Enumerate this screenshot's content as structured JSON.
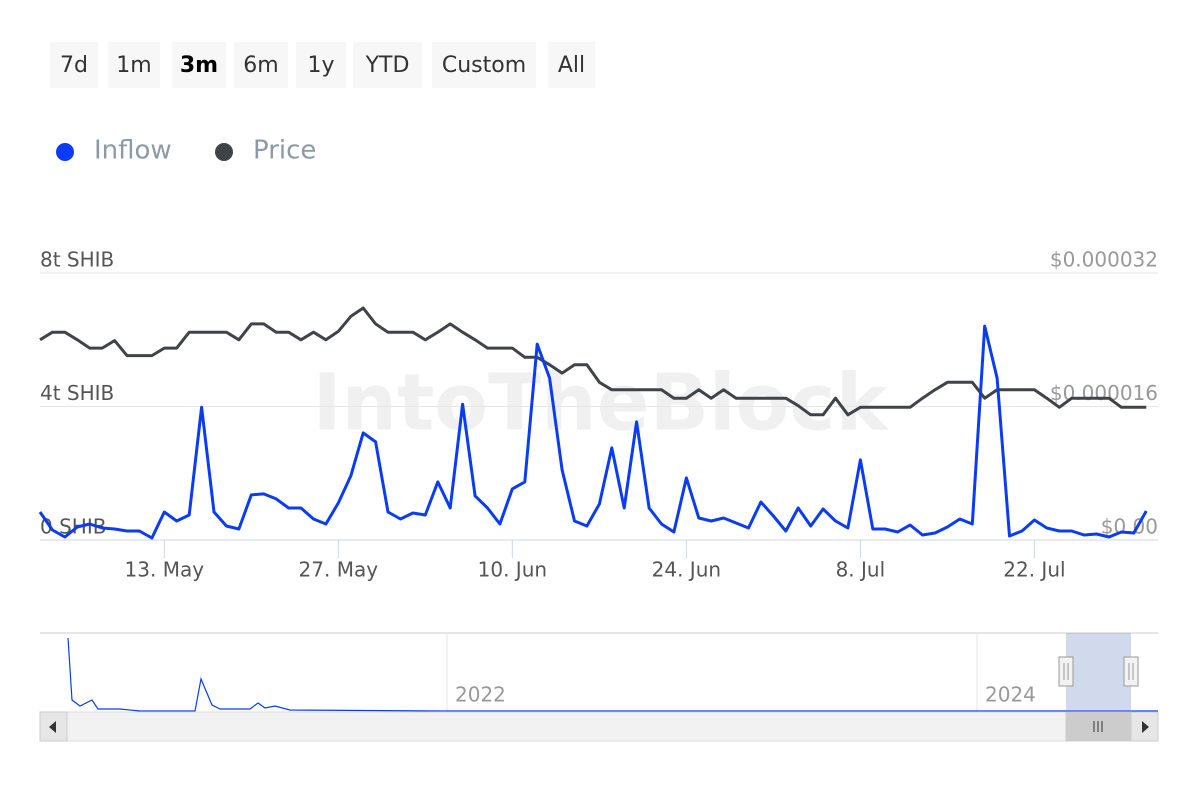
{
  "range_buttons": {
    "labels": [
      "7d",
      "1m",
      "3m",
      "6m",
      "1y",
      "YTD",
      "Custom",
      "All"
    ],
    "selected": 2
  },
  "chart_data": {
    "type": "line",
    "watermark": "IntoTheBlock",
    "categories": [
      null,
      null,
      null,
      null,
      null,
      null,
      null,
      null,
      null,
      null,
      "13. May",
      null,
      null,
      null,
      null,
      null,
      null,
      null,
      null,
      null,
      null,
      null,
      null,
      null,
      "27. May",
      null,
      null,
      null,
      null,
      null,
      null,
      null,
      null,
      null,
      null,
      null,
      null,
      null,
      "10. Jun",
      null,
      null,
      null,
      null,
      null,
      null,
      null,
      null,
      null,
      null,
      null,
      null,
      null,
      "24. Jun",
      null,
      null,
      null,
      null,
      null,
      null,
      null,
      null,
      null,
      null,
      null,
      null,
      null,
      "8. Jul",
      null,
      null,
      null,
      null,
      null,
      null,
      null,
      null,
      null,
      null,
      null,
      null,
      null,
      "22. Jul",
      null,
      null,
      null,
      null,
      null,
      null,
      null,
      null,
      null
    ],
    "ylim": [
      0,
      8
    ],
    "yticks": [
      {
        "value": 0,
        "label": "0 SHIB"
      },
      {
        "value": 4,
        "label": "4t SHIB"
      },
      {
        "value": 8,
        "label": "8t SHIB"
      }
    ],
    "y2lim": [
      0,
      3.2e-05
    ],
    "y2ticks": [
      {
        "value": 0,
        "label": "$0.00"
      },
      {
        "value": 1.6e-05,
        "label": "$0.000016"
      },
      {
        "value": 3.2e-05,
        "label": "$0.000032"
      }
    ],
    "grid": true,
    "series": [
      {
        "name": "Inflow",
        "color": "#0a3cf5",
        "values": [
          0.84,
          0.3,
          0.09,
          0.39,
          0.48,
          0.36,
          0.33,
          0.27,
          0.27,
          0.06,
          0.84,
          0.57,
          0.75,
          3.98,
          0.84,
          0.42,
          0.33,
          1.35,
          1.38,
          1.23,
          0.96,
          0.96,
          0.63,
          0.48,
          1.11,
          1.92,
          3.21,
          2.94,
          0.84,
          0.63,
          0.81,
          0.75,
          1.74,
          0.96,
          4.07,
          1.32,
          0.96,
          0.48,
          1.53,
          1.74,
          5.87,
          4.85,
          2.1,
          0.57,
          0.42,
          1.08,
          2.76,
          0.96,
          3.54,
          0.96,
          0.48,
          0.24,
          1.86,
          0.66,
          0.57,
          0.66,
          0.51,
          0.36,
          1.14,
          0.72,
          0.27,
          0.96,
          0.42,
          0.93,
          0.57,
          0.36,
          2.4,
          0.33,
          0.33,
          0.24,
          0.45,
          0.15,
          0.21,
          0.39,
          0.63,
          0.48,
          6.41,
          4.85,
          0.12,
          0.27,
          0.6,
          0.36,
          0.27,
          0.27,
          0.15,
          0.18,
          0.09,
          0.24,
          0.21,
          0.87
        ]
      },
      {
        "name": "Price",
        "color": "#404448",
        "axis": "y2",
        "values": [
          2.4e-05,
          2.49e-05,
          2.49e-05,
          2.4e-05,
          2.3e-05,
          2.3e-05,
          2.39e-05,
          2.21e-05,
          2.21e-05,
          2.21e-05,
          2.3e-05,
          2.3e-05,
          2.49e-05,
          2.49e-05,
          2.49e-05,
          2.49e-05,
          2.4e-05,
          2.59e-05,
          2.59e-05,
          2.49e-05,
          2.49e-05,
          2.4e-05,
          2.49e-05,
          2.4e-05,
          2.5e-05,
          2.68e-05,
          2.78e-05,
          2.59e-05,
          2.49e-05,
          2.49e-05,
          2.49e-05,
          2.4e-05,
          2.49e-05,
          2.59e-05,
          2.49e-05,
          2.4e-05,
          2.3e-05,
          2.3e-05,
          2.3e-05,
          2.19e-05,
          2.19e-05,
          2.1e-05,
          2e-05,
          2.1e-05,
          2.1e-05,
          1.89e-05,
          1.8e-05,
          1.8e-05,
          1.8e-05,
          1.8e-05,
          1.8e-05,
          1.7e-05,
          1.7e-05,
          1.8e-05,
          1.7e-05,
          1.8e-05,
          1.7e-05,
          1.7e-05,
          1.7e-05,
          1.7e-05,
          1.7e-05,
          1.61e-05,
          1.5e-05,
          1.5e-05,
          1.7e-05,
          1.5e-05,
          1.59e-05,
          1.59e-05,
          1.59e-05,
          1.59e-05,
          1.59e-05,
          1.7e-05,
          1.8e-05,
          1.89e-05,
          1.89e-05,
          1.89e-05,
          1.7e-05,
          1.8e-05,
          1.8e-05,
          1.8e-05,
          1.8e-05,
          1.7e-05,
          1.59e-05,
          1.7e-05,
          1.7e-05,
          1.7e-05,
          1.7e-05,
          1.59e-05,
          1.59e-05,
          1.59e-05
        ]
      }
    ]
  },
  "navigator": {
    "labels": [
      "2022",
      "2024"
    ]
  }
}
